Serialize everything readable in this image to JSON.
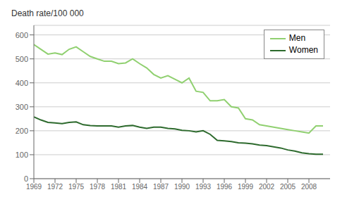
{
  "chart_data": {
    "type": "line",
    "ylabel": "Death rate/100 000",
    "x": [
      1969,
      1970,
      1971,
      1972,
      1973,
      1974,
      1975,
      1976,
      1977,
      1978,
      1979,
      1980,
      1981,
      1982,
      1983,
      1984,
      1985,
      1986,
      1987,
      1988,
      1989,
      1990,
      1991,
      1992,
      1993,
      1994,
      1995,
      1996,
      1997,
      1998,
      1999,
      2000,
      2001,
      2002,
      2003,
      2004,
      2005,
      2006,
      2007,
      2008,
      2009,
      2010
    ],
    "series": [
      {
        "name": "Men",
        "color": "#90d070",
        "values": [
          560,
          540,
          520,
          525,
          518,
          540,
          550,
          530,
          510,
          500,
          490,
          490,
          480,
          483,
          500,
          480,
          462,
          435,
          420,
          430,
          415,
          400,
          420,
          365,
          360,
          325,
          325,
          330,
          300,
          295,
          250,
          245,
          225,
          220,
          215,
          210,
          205,
          200,
          195,
          190,
          220,
          220
        ]
      },
      {
        "name": "Women",
        "color": "#2d6a2d",
        "values": [
          258,
          245,
          235,
          233,
          230,
          235,
          237,
          225,
          222,
          220,
          220,
          220,
          215,
          220,
          222,
          215,
          210,
          215,
          215,
          210,
          208,
          202,
          200,
          195,
          200,
          185,
          160,
          158,
          155,
          150,
          148,
          145,
          140,
          138,
          133,
          128,
          120,
          115,
          108,
          104,
          102,
          102
        ]
      }
    ],
    "xlim": [
      1969,
      2011
    ],
    "xticks": [
      1969,
      1972,
      1975,
      1978,
      1981,
      1984,
      1987,
      1990,
      1993,
      1996,
      1999,
      2002,
      2005,
      2008
    ],
    "ylim": [
      0,
      640
    ],
    "yticks": [
      0,
      100,
      200,
      300,
      400,
      500,
      600
    ],
    "grid": true,
    "legend": "upper right"
  }
}
